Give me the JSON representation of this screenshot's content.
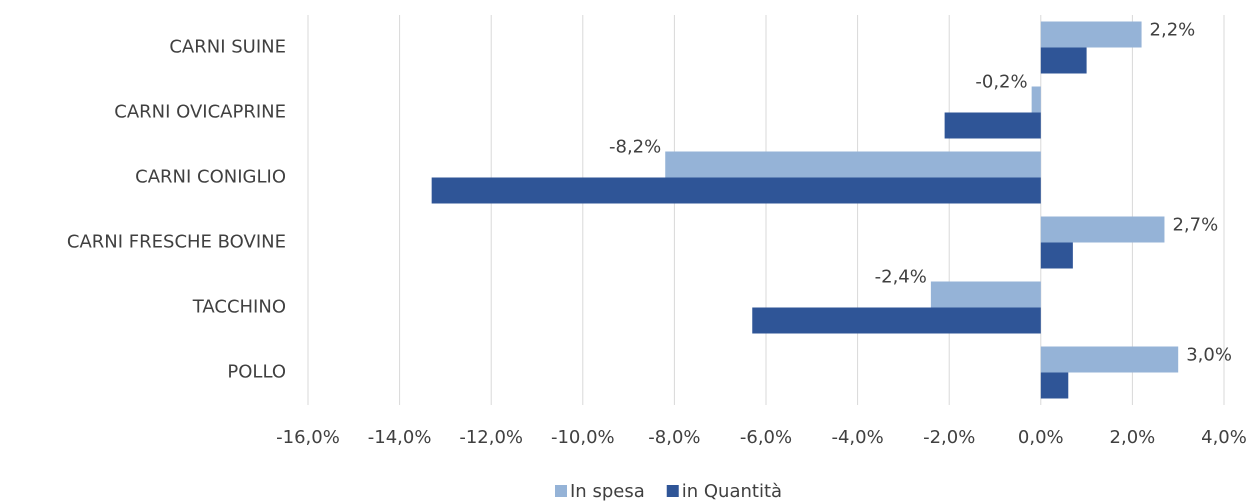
{
  "chart_data": {
    "type": "bar",
    "orientation": "horizontal",
    "categories": [
      "CARNI SUINE",
      "CARNI  OVICAPRINE",
      "CARNI CONIGLIO",
      "CARNI FRESCHE BOVINE",
      "TACCHINO",
      "POLLO"
    ],
    "series": [
      {
        "name": "In spesa",
        "color": "#95b3d7",
        "values": [
          2.2,
          -0.2,
          -8.2,
          2.7,
          -2.4,
          3.0
        ],
        "value_labels": [
          "2,2%",
          "-0,2%",
          "-8,2%",
          "2,7%",
          "-2,4%",
          "3,0%"
        ]
      },
      {
        "name": "in Quantità",
        "color": "#2f5597",
        "values": [
          1.0,
          -2.1,
          -13.3,
          0.7,
          -6.3,
          0.6
        ]
      }
    ],
    "xlim": [
      -16,
      4
    ],
    "xticks": [
      {
        "value": -16,
        "label": "-16,0%"
      },
      {
        "value": -14,
        "label": "-14,0%"
      },
      {
        "value": -12,
        "label": "-12,0%"
      },
      {
        "value": -10,
        "label": "-10,0%"
      },
      {
        "value": -8,
        "label": "-8,0%"
      },
      {
        "value": -6,
        "label": "-6,0%"
      },
      {
        "value": -4,
        "label": "-4,0%"
      },
      {
        "value": -2,
        "label": "-2,0%"
      },
      {
        "value": 0,
        "label": "0,0%"
      },
      {
        "value": 2,
        "label": "2,0%"
      },
      {
        "value": 4,
        "label": "4,0%"
      }
    ],
    "grid": true,
    "legend": "bottom"
  }
}
